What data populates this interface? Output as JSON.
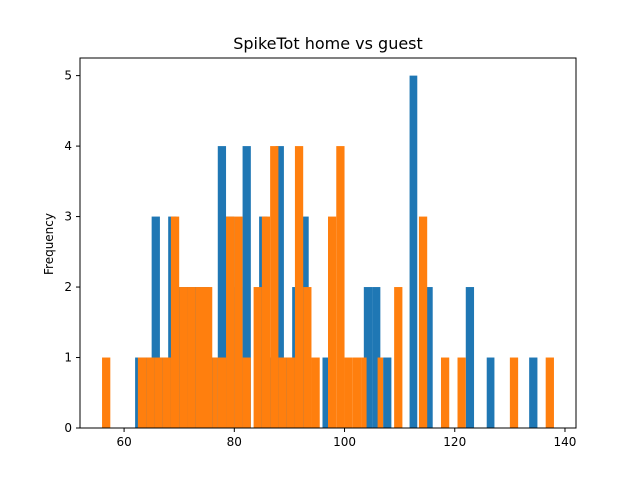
{
  "chart_data": {
    "type": "bar",
    "subtype": "histogram",
    "title": "SpikeTot home vs guest",
    "xlabel": "",
    "ylabel": "Frequency",
    "xlim": [
      52,
      142
    ],
    "ylim": [
      0,
      5.25
    ],
    "xticks": [
      60,
      80,
      100,
      120,
      140
    ],
    "yticks": [
      0,
      1,
      2,
      3,
      4,
      5
    ],
    "grid": false,
    "legend": "none",
    "series": [
      {
        "color": "#1f77b4",
        "bins": [
          {
            "x0": 62.0,
            "x1": 63.5,
            "count": 1
          },
          {
            "x0": 63.5,
            "x1": 65.0,
            "count": 1
          },
          {
            "x0": 65.0,
            "x1": 66.5,
            "count": 3
          },
          {
            "x0": 66.5,
            "x1": 68.0,
            "count": 1
          },
          {
            "x0": 68.0,
            "x1": 69.5,
            "count": 3
          },
          {
            "x0": 69.5,
            "x1": 71.0,
            "count": 2
          },
          {
            "x0": 71.0,
            "x1": 72.5,
            "count": 2
          },
          {
            "x0": 72.5,
            "x1": 74.0,
            "count": 2
          },
          {
            "x0": 74.0,
            "x1": 75.5,
            "count": 2
          },
          {
            "x0": 75.5,
            "x1": 77.0,
            "count": 1
          },
          {
            "x0": 77.0,
            "x1": 78.5,
            "count": 4
          },
          {
            "x0": 78.5,
            "x1": 80.0,
            "count": 3
          },
          {
            "x0": 80.0,
            "x1": 81.5,
            "count": 2
          },
          {
            "x0": 81.5,
            "x1": 83.0,
            "count": 4
          },
          {
            "x0": 84.5,
            "x1": 86.0,
            "count": 3
          },
          {
            "x0": 86.0,
            "x1": 87.5,
            "count": 1
          },
          {
            "x0": 87.5,
            "x1": 89.0,
            "count": 4
          },
          {
            "x0": 89.0,
            "x1": 90.5,
            "count": 1
          },
          {
            "x0": 90.5,
            "x1": 92.0,
            "count": 2
          },
          {
            "x0": 92.0,
            "x1": 93.5,
            "count": 3
          },
          {
            "x0": 96.0,
            "x1": 97.5,
            "count": 1
          },
          {
            "x0": 103.5,
            "x1": 105.0,
            "count": 2
          },
          {
            "x0": 105.0,
            "x1": 106.5,
            "count": 2
          },
          {
            "x0": 107.0,
            "x1": 108.5,
            "count": 1
          },
          {
            "x0": 111.8,
            "x1": 113.2,
            "count": 5
          },
          {
            "x0": 114.5,
            "x1": 116.0,
            "count": 2
          },
          {
            "x0": 122.0,
            "x1": 123.5,
            "count": 2
          },
          {
            "x0": 125.8,
            "x1": 127.2,
            "count": 1
          },
          {
            "x0": 133.5,
            "x1": 135.0,
            "count": 1
          }
        ]
      },
      {
        "color": "#ff7f0e",
        "bins": [
          {
            "x0": 56.0,
            "x1": 57.5,
            "count": 1
          },
          {
            "x0": 62.5,
            "x1": 64.0,
            "count": 1
          },
          {
            "x0": 64.0,
            "x1": 65.5,
            "count": 1
          },
          {
            "x0": 65.5,
            "x1": 67.0,
            "count": 1
          },
          {
            "x0": 67.0,
            "x1": 68.5,
            "count": 1
          },
          {
            "x0": 68.5,
            "x1": 70.0,
            "count": 3
          },
          {
            "x0": 70.0,
            "x1": 71.5,
            "count": 2
          },
          {
            "x0": 71.5,
            "x1": 73.0,
            "count": 2
          },
          {
            "x0": 73.0,
            "x1": 74.5,
            "count": 2
          },
          {
            "x0": 74.5,
            "x1": 76.0,
            "count": 2
          },
          {
            "x0": 76.0,
            "x1": 77.0,
            "count": 1
          },
          {
            "x0": 77.0,
            "x1": 78.5,
            "count": 1
          },
          {
            "x0": 78.5,
            "x1": 80.0,
            "count": 3
          },
          {
            "x0": 80.0,
            "x1": 81.5,
            "count": 3
          },
          {
            "x0": 81.5,
            "x1": 83.0,
            "count": 1
          },
          {
            "x0": 83.5,
            "x1": 85.0,
            "count": 2
          },
          {
            "x0": 85.0,
            "x1": 86.5,
            "count": 3
          },
          {
            "x0": 86.5,
            "x1": 88.0,
            "count": 4
          },
          {
            "x0": 88.0,
            "x1": 89.5,
            "count": 1
          },
          {
            "x0": 89.5,
            "x1": 91.0,
            "count": 1
          },
          {
            "x0": 91.0,
            "x1": 92.5,
            "count": 4
          },
          {
            "x0": 92.5,
            "x1": 94.0,
            "count": 2
          },
          {
            "x0": 94.0,
            "x1": 95.5,
            "count": 1
          },
          {
            "x0": 97.0,
            "x1": 98.5,
            "count": 3
          },
          {
            "x0": 98.5,
            "x1": 100.0,
            "count": 4
          },
          {
            "x0": 100.0,
            "x1": 101.5,
            "count": 1
          },
          {
            "x0": 101.5,
            "x1": 103.0,
            "count": 1
          },
          {
            "x0": 103.0,
            "x1": 104.0,
            "count": 1
          },
          {
            "x0": 106.0,
            "x1": 107.0,
            "count": 1
          },
          {
            "x0": 109.0,
            "x1": 110.5,
            "count": 2
          },
          {
            "x0": 113.5,
            "x1": 115.0,
            "count": 3
          },
          {
            "x0": 117.5,
            "x1": 119.0,
            "count": 1
          },
          {
            "x0": 120.5,
            "x1": 122.0,
            "count": 1
          },
          {
            "x0": 130.0,
            "x1": 131.5,
            "count": 1
          },
          {
            "x0": 136.5,
            "x1": 138.0,
            "count": 1
          }
        ]
      }
    ]
  }
}
